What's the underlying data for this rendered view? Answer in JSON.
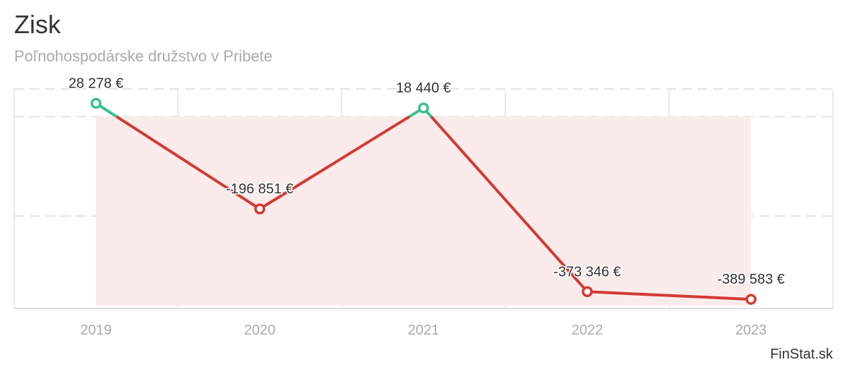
{
  "header": {
    "title": "Zisk",
    "subtitle": "Poľnohospodárske družstvo v Pribete"
  },
  "credit": "FinStat.sk",
  "colors": {
    "positive": "#3cbf8c",
    "negative": "#d23a35",
    "area_fill": "#fbeceb",
    "grid": "#e3e3e3"
  },
  "chart_data": {
    "type": "line",
    "title": "Zisk",
    "subtitle": "Poľnohospodárske družstvo v Pribete",
    "categories": [
      "2019",
      "2020",
      "2021",
      "2022",
      "2023"
    ],
    "values": [
      28278,
      -196851,
      18440,
      -373346,
      -389583
    ],
    "labels": [
      "28 278 €",
      "-196 851 €",
      "18 440 €",
      "-373 346 €",
      "-389 583 €"
    ],
    "ylim": [
      -400000,
      200000
    ],
    "grid": true,
    "legend": "none"
  }
}
